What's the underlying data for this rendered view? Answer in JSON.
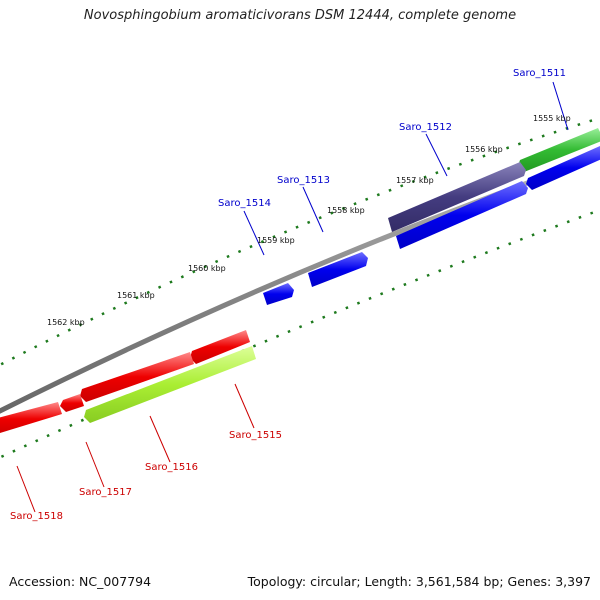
{
  "title": "Novosphingobium aromaticivorans DSM 12444, complete genome",
  "accession": "Accession: NC_007794",
  "summary": "Topology: circular; Length: 3,561,584 bp; Genes: 3,397",
  "colors": {
    "backbone": "#7a7a7a",
    "tick": "#1e7a1e",
    "forward_label": "#0000cc",
    "reverse_label": "#cc0000",
    "gene_blue": "#0000ee",
    "gene_red": "#ee0000",
    "gene_green": "#33bb33",
    "gene_purple": "#443c80",
    "gene_lime": "#aaee33"
  },
  "scale_labels": [
    "1555 kbp",
    "1556 kbp",
    "1557 kbp",
    "1558 kbp",
    "1559 kbp",
    "1560 kbp",
    "1561 kbp",
    "1562 kbp"
  ],
  "genes": [
    {
      "name": "Saro_1511",
      "strand": "forward"
    },
    {
      "name": "Saro_1512",
      "strand": "forward"
    },
    {
      "name": "Saro_1513",
      "strand": "forward"
    },
    {
      "name": "Saro_1514",
      "strand": "forward"
    },
    {
      "name": "Saro_1515",
      "strand": "reverse"
    },
    {
      "name": "Saro_1516",
      "strand": "reverse"
    },
    {
      "name": "Saro_1517",
      "strand": "reverse"
    },
    {
      "name": "Saro_1518",
      "strand": "reverse"
    }
  ]
}
